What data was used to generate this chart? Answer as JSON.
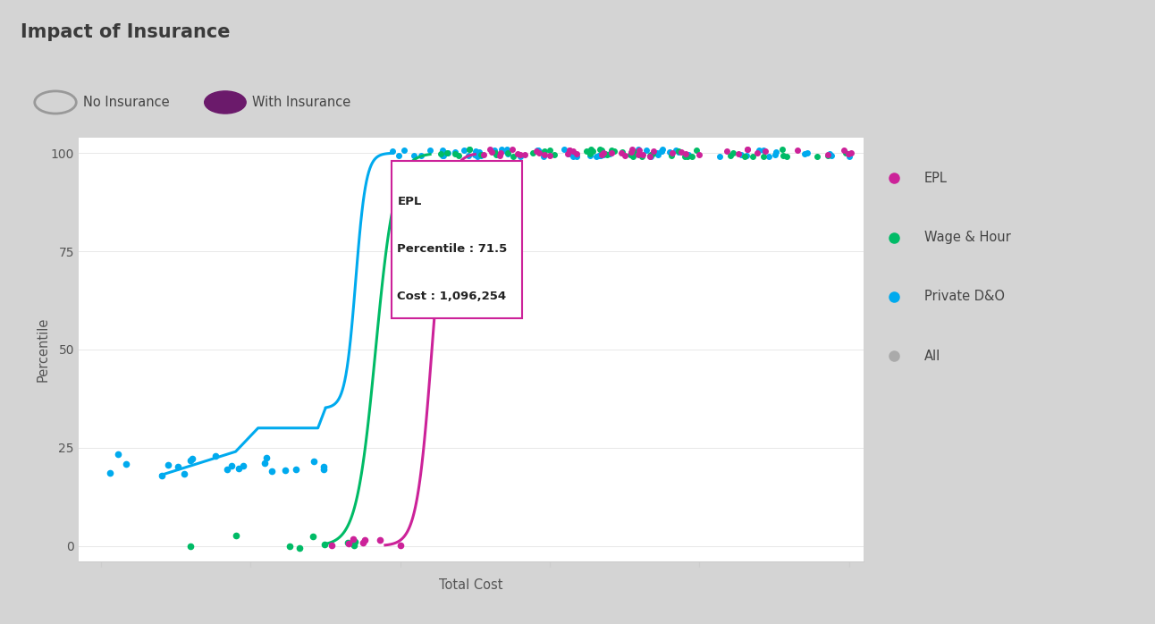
{
  "title": "Impact of Insurance",
  "title_color": "#3a3a3a",
  "title_fontsize": 15,
  "background_outer": "#d4d4d4",
  "background_inner": "#ffffff",
  "header_line_color": "#5c1a5c",
  "xlabel": "Total Cost",
  "ylabel": "Percentile",
  "ylim": [
    -4,
    104
  ],
  "yticks": [
    0,
    25,
    50,
    75,
    100
  ],
  "legend_items": [
    "EPL",
    "Wage & Hour",
    "Private D&O",
    "All"
  ],
  "legend_colors": [
    "#cc2299",
    "#00bb66",
    "#00aaee",
    "#aaaaaa"
  ],
  "no_insurance_label": "No Insurance",
  "with_insurance_label": "With Insurance",
  "no_ins_edge_color": "#aaaaaa",
  "with_ins_color": "#6b1a6b",
  "tooltip_title": "EPL",
  "tooltip_percentile": "71.5",
  "tooltip_cost": "1,096,254",
  "tooltip_border_color": "#cc2299",
  "epl_color": "#cc2299",
  "wage_color": "#00bb66",
  "dno_color": "#00aaee"
}
